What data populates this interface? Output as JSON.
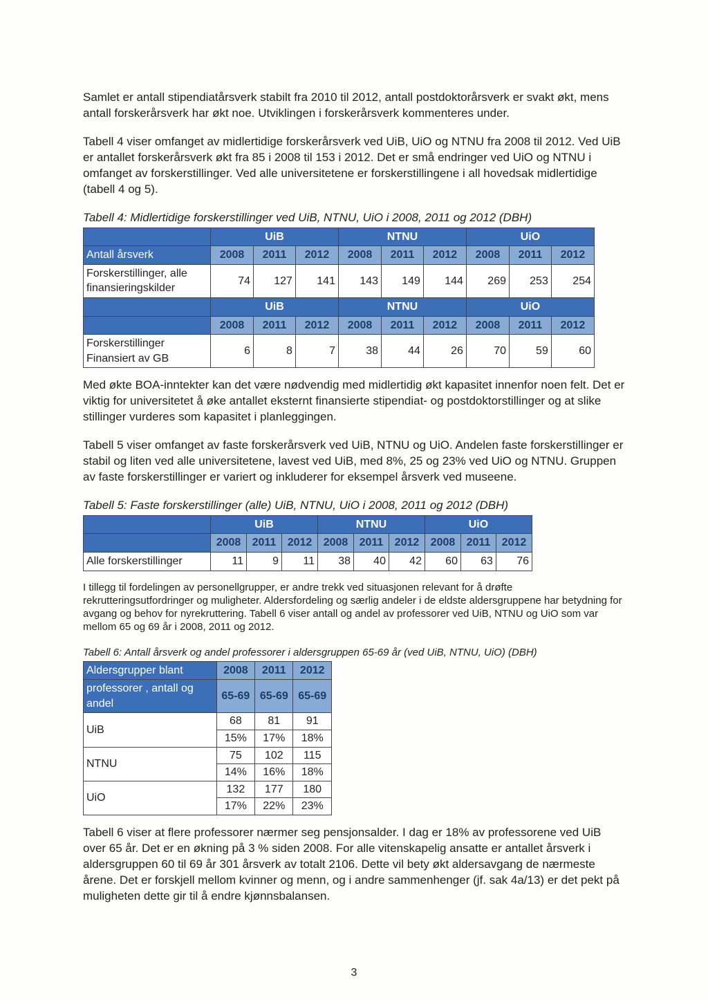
{
  "page_number": "3",
  "paragraphs": {
    "p1": "Samlet er antall stipendiatårsverk stabilt fra 2010 til 2012, antall postdoktorårsverk er svakt økt, mens antall forskerårsverk har økt noe. Utviklingen i forskerårsverk kommenteres under.",
    "p2": "Tabell 4 viser omfanget av midlertidige forskerårsverk ved UiB, UiO og NTNU fra 2008 til 2012. Ved UiB er antallet forskerårsverk økt fra 85 i 2008 til 153 i 2012. Det er små endringer ved UiO og NTNU i omfanget av forskerstillinger. Ved alle universitetene er forskerstillingene i all hovedsak midlertidige (tabell 4 og 5).",
    "p3": "Med økte BOA-inntekter kan det være nødvendig med midlertidig økt kapasitet innenfor noen felt. Det er viktig for universitetet å øke antallet eksternt finansierte stipendiat- og postdoktorstillinger og at slike stillinger vurderes som kapasitet i planleggingen.",
    "p4": "Tabell 5 viser omfanget av faste forskerårsverk ved UiB, NTNU og UiO. Andelen faste forskerstillinger er stabil og liten ved alle universitetene, lavest ved UiB, med 8%, 25 og 23% ved UiO og NTNU. Gruppen av faste forskerstillinger er variert og inkluderer for eksempel årsverk ved museene.",
    "p5": "I tillegg til fordelingen av personellgrupper, er andre trekk ved situasjonen relevant for å drøfte rekrutteringsutfordringer og muligheter. Aldersfordeling og særlig andeler i de eldste aldersgruppene har betydning for avgang og behov for nyrekruttering. Tabell 6 viser antall og andel av professorer ved UiB, NTNU og UiO som var mellom 65 og 69 år i 2008, 2011 og 2012.",
    "p6": "Tabell 6 viser at flere professorer nærmer seg pensjonsalder. I dag er 18% av professorene ved UiB over 65 år. Det er en økning på 3 % siden 2008. For alle vitenskapelig ansatte er antallet årsverk i aldersgruppen 60 til 69 år 301 årsverk av totalt 2106. Dette vil bety økt aldersavgang de nærmeste årene. Det er forskjell mellom kvinner og menn, og i andre sammenhenger (jf. sak 4a/13) er det pekt på muligheten dette gir til å endre kjønnsbalansen."
  },
  "table4": {
    "caption": "Tabell 4: Midlertidige forskerstillinger ved UiB, NTNU, UiO i 2008, 2011 og 2012 (DBH)",
    "inst": [
      "UiB",
      "NTNU",
      "UiO"
    ],
    "years": [
      "2008",
      "2011",
      "2012",
      "2008",
      "2011",
      "2012",
      "2008",
      "2011",
      "2012"
    ],
    "row1_label_a": "Antall årsverk",
    "row1_label_b": "Forskerstillinger, alle finansieringskilder",
    "row1_vals": [
      "74",
      "127",
      "141",
      "143",
      "149",
      "144",
      "269",
      "253",
      "254"
    ],
    "row2_label_b": "Forskerstillinger Finansiert av GB",
    "row2_vals": [
      "6",
      "8",
      "7",
      "38",
      "44",
      "26",
      "70",
      "59",
      "60"
    ]
  },
  "table5": {
    "caption": "Tabell 5: Faste forskerstillinger (alle) UiB, NTNU, UiO i 2008, 2011 og 2012 (DBH)",
    "inst": [
      "UiB",
      "NTNU",
      "UiO"
    ],
    "years": [
      "2008",
      "2011",
      "2012",
      "2008",
      "2011",
      "2012",
      "2008",
      "2011",
      "2012"
    ],
    "row_label": "Alle forskerstillinger",
    "row_vals": [
      "11",
      "9",
      "11",
      "38",
      "40",
      "42",
      "60",
      "63",
      "76"
    ]
  },
  "table6": {
    "caption": "Tabell 6: Antall årsverk og andel professorer i aldersgruppen 65-69 år (ved UiB, NTNU, UiO) (DBH)",
    "header1": "Aldersgrupper blant",
    "header2": "professorer , antall og andel",
    "years": [
      "2008",
      "2011",
      "2012"
    ],
    "ranges": [
      "65-69",
      "65-69",
      "65-69"
    ],
    "rows": [
      {
        "label": "UiB",
        "n": [
          "68",
          "81",
          "91"
        ],
        "pct": [
          "15%",
          "17%",
          "18%"
        ]
      },
      {
        "label": "NTNU",
        "n": [
          "75",
          "102",
          "115"
        ],
        "pct": [
          "14%",
          "16%",
          "18%"
        ]
      },
      {
        "label": "UiO",
        "n": [
          "132",
          "177",
          "180"
        ],
        "pct": [
          "17%",
          "22%",
          "23%"
        ]
      }
    ]
  },
  "colors": {
    "header_dark": "#3c6fb8",
    "header_light": "#88abd6",
    "text": "#222222",
    "border": "#444444",
    "page_bg": "#fdfdfb"
  }
}
